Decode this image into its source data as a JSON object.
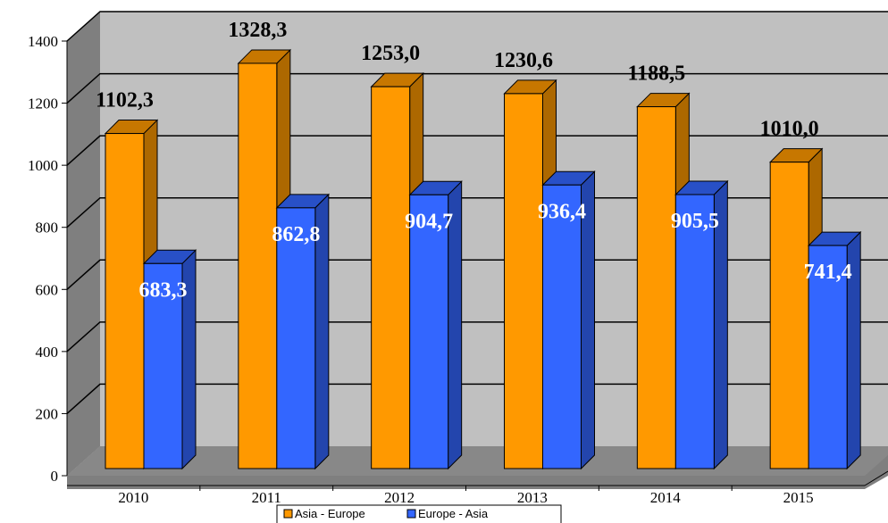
{
  "chart_data": {
    "type": "bar",
    "title": "",
    "xlabel": "",
    "ylabel": "",
    "categories": [
      "2010",
      "2011",
      "2012",
      "2013",
      "2014",
      "2015"
    ],
    "ylim": [
      0,
      1400
    ],
    "yticks": [
      0,
      200,
      400,
      600,
      800,
      1000,
      1200,
      1400
    ],
    "grid": true,
    "legend_position": "bottom",
    "series": [
      {
        "name": "Asia - Europe",
        "values": [
          1102.3,
          1328.3,
          1253.0,
          1230.6,
          1188.5,
          1010.0
        ],
        "labels": [
          "1102,3",
          "1328,3",
          "1253,0",
          "1230,6",
          "1188,5",
          "1010,0"
        ],
        "color": "#FF9900"
      },
      {
        "name": "Europe - Asia",
        "values": [
          683.3,
          862.8,
          904.7,
          936.4,
          905.5,
          741.4
        ],
        "labels": [
          "683,3",
          "862,8",
          "904,7",
          "936,4",
          "905,5",
          "741,4"
        ],
        "color": "#3366FF"
      }
    ]
  }
}
